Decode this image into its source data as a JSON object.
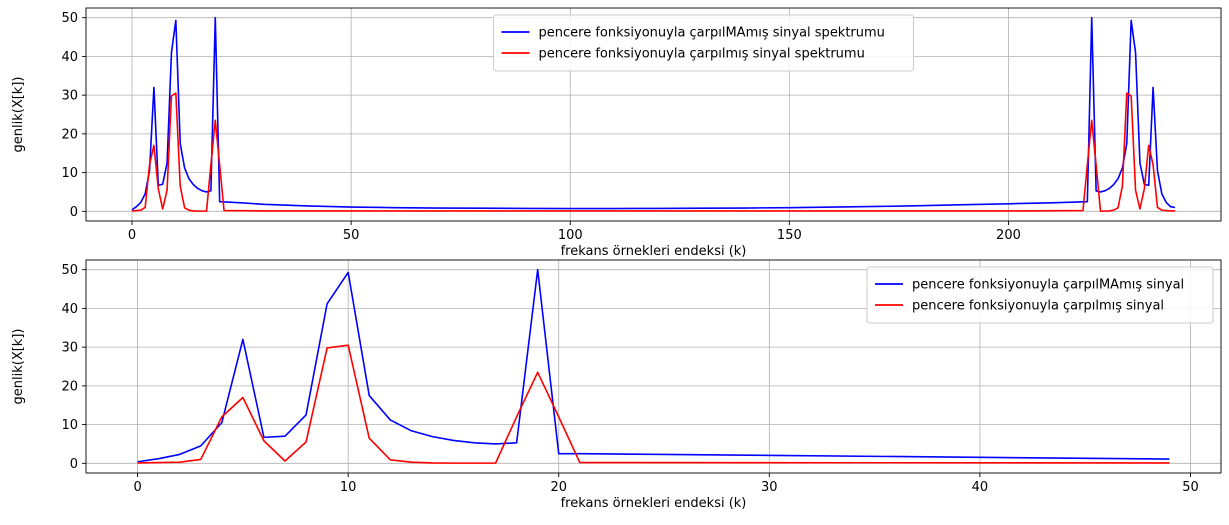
{
  "chart_data": [
    {
      "type": "line",
      "xlabel": "frekans örnekleri endeksi (k)",
      "ylabel": "genlik(X[k])",
      "xlim": [
        -10.5,
        248.5
      ],
      "ylim": [
        -2.5,
        52.5
      ],
      "xticks": [
        0,
        50,
        100,
        150,
        200
      ],
      "yticks": [
        0,
        10,
        20,
        30,
        40,
        50
      ],
      "grid": true,
      "legend_position": "top-center",
      "series": [
        {
          "name": "pencere fonksiyonuyla çarpılMAmış sinyal spektrumu",
          "color": "#0000ff",
          "x": [
            0,
            1,
            2,
            3,
            4,
            5,
            6,
            7,
            8,
            9,
            10,
            11,
            12,
            13,
            14,
            15,
            16,
            17,
            18,
            19,
            20,
            25,
            30,
            40,
            50,
            60,
            70,
            80,
            90,
            100,
            110,
            120,
            130,
            140,
            150,
            160,
            170,
            180,
            190,
            200,
            210,
            218,
            219,
            220,
            221,
            222,
            223,
            224,
            225,
            226,
            227,
            228,
            229,
            230,
            231,
            232,
            233,
            234,
            235,
            236,
            237,
            238
          ],
          "y": [
            0.4,
            1.2,
            2.3,
            4.5,
            10.5,
            32.0,
            6.7,
            7.0,
            12.5,
            41.0,
            49.3,
            17.5,
            11.2,
            8.4,
            6.9,
            5.9,
            5.3,
            5.0,
            5.3,
            50.0,
            2.5,
            2.2,
            1.8,
            1.4,
            1.1,
            0.95,
            0.85,
            0.8,
            0.75,
            0.72,
            0.72,
            0.75,
            0.8,
            0.85,
            0.95,
            1.1,
            1.25,
            1.45,
            1.7,
            1.95,
            2.2,
            2.5,
            50.0,
            5.3,
            5.0,
            5.3,
            5.9,
            6.9,
            8.4,
            11.2,
            17.5,
            49.3,
            41.0,
            12.5,
            7.0,
            6.7,
            32.0,
            10.5,
            4.5,
            2.3,
            1.2,
            1.0
          ]
        },
        {
          "name": "pencere fonksiyonuyla çarpılmış sinyal spektrumu",
          "color": "#ff0000",
          "x": [
            0,
            1,
            2,
            3,
            4,
            5,
            6,
            7,
            8,
            9,
            10,
            11,
            12,
            13,
            14,
            15,
            16,
            17,
            18,
            19,
            20,
            21,
            30,
            50,
            100,
            150,
            200,
            217,
            218,
            219,
            220,
            221,
            222,
            223,
            224,
            225,
            226,
            227,
            228,
            229,
            230,
            231,
            232,
            233,
            234,
            235,
            236,
            237,
            238
          ],
          "y": [
            0.1,
            0.2,
            0.3,
            1.0,
            12.0,
            17.0,
            5.8,
            0.6,
            5.5,
            29.8,
            30.5,
            6.5,
            0.9,
            0.3,
            0.1,
            0.05,
            0.05,
            0.05,
            12.0,
            23.5,
            12.0,
            0.2,
            0.1,
            0.1,
            0.1,
            0.1,
            0.1,
            0.2,
            12.0,
            23.5,
            12.0,
            0.05,
            0.05,
            0.1,
            0.3,
            0.9,
            6.5,
            30.5,
            29.8,
            5.5,
            0.6,
            5.8,
            17.0,
            12.0,
            1.0,
            0.3,
            0.2,
            0.1,
            0.1
          ]
        }
      ]
    },
    {
      "type": "line",
      "xlabel": "frekans örnekleri endeksi (k)",
      "ylabel": "genlik(X[k])",
      "xlim": [
        -2.45,
        51.45
      ],
      "ylim": [
        -2.5,
        52.5
      ],
      "xticks": [
        0,
        10,
        20,
        30,
        40,
        50
      ],
      "yticks": [
        0,
        10,
        20,
        30,
        40,
        50
      ],
      "grid": true,
      "legend_position": "top-right",
      "series": [
        {
          "name": "pencere fonksiyonuyla çarpılMAmış sinyal",
          "color": "#0000ff",
          "x": [
            0,
            1,
            2,
            3,
            4,
            5,
            6,
            7,
            8,
            9,
            10,
            11,
            12,
            13,
            14,
            15,
            16,
            17,
            18,
            19,
            20,
            21,
            49
          ],
          "y": [
            0.4,
            1.2,
            2.3,
            4.5,
            10.5,
            32.0,
            6.7,
            7.0,
            12.5,
            41.2,
            49.3,
            17.5,
            11.2,
            8.4,
            6.9,
            5.9,
            5.3,
            5.0,
            5.3,
            50.0,
            2.5,
            2.5,
            1.1
          ]
        },
        {
          "name": "pencere fonksiyonuyla çarpılmış sinyal",
          "color": "#ff0000",
          "x": [
            0,
            1,
            2,
            3,
            4,
            5,
            6,
            7,
            8,
            9,
            10,
            11,
            12,
            13,
            14,
            15,
            16,
            17,
            18,
            19,
            20,
            21,
            49
          ],
          "y": [
            0.1,
            0.2,
            0.3,
            1.0,
            12.0,
            17.0,
            5.8,
            0.6,
            5.5,
            29.8,
            30.5,
            6.5,
            0.9,
            0.3,
            0.1,
            0.05,
            0.05,
            0.05,
            12.0,
            23.5,
            12.0,
            0.2,
            0.1
          ]
        }
      ]
    }
  ]
}
